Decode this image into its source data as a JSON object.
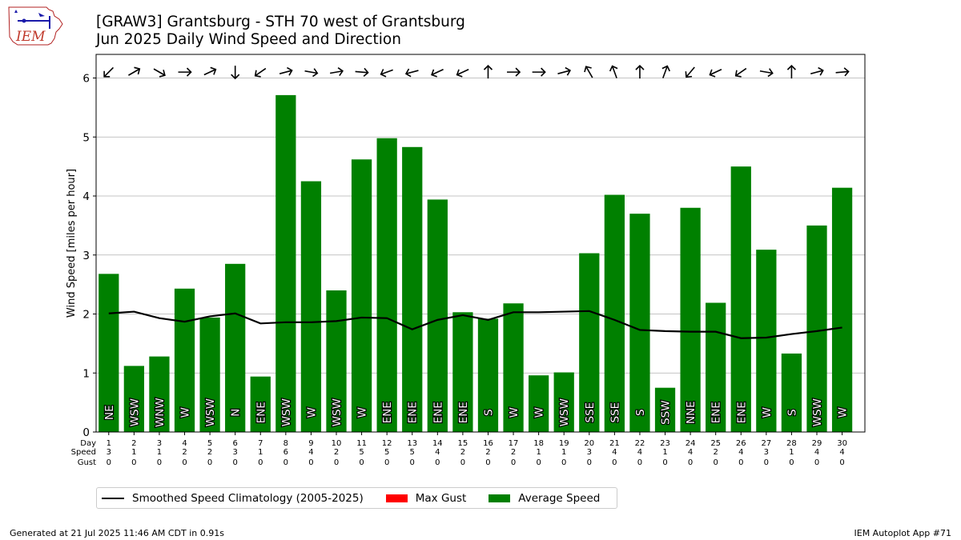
{
  "header": {
    "logo_text": "IEM",
    "title_line1": "[GRAW3] Grantsburg - STH 70 west of Grantsburg",
    "title_line2": "Jun 2025 Daily Wind Speed and Direction"
  },
  "legend": {
    "climatology": "Smoothed Speed Climatology (2005-2025)",
    "max_gust": "Max Gust",
    "average_speed": "Average Speed"
  },
  "footer": {
    "generated": "Generated at 21 Jul 2025 11:46 AM CDT in 0.91s",
    "app": "IEM Autoplot App #71"
  },
  "colors": {
    "bar": "#008000",
    "gust": "#ff0000",
    "climatology": "#000000",
    "grid": "#b0b0b0"
  },
  "chart_data": {
    "type": "bar",
    "ylabel": "Wind Speed [miles per hour]",
    "ylim": [
      0,
      6.4
    ],
    "yticks": [
      0,
      1,
      2,
      3,
      4,
      5,
      6
    ],
    "grid": "horizontal",
    "legend_position": "bottom",
    "row_labels": [
      "Day",
      "Speed",
      "Gust"
    ],
    "days": [
      1,
      2,
      3,
      4,
      5,
      6,
      7,
      8,
      9,
      10,
      11,
      12,
      13,
      14,
      15,
      16,
      17,
      18,
      19,
      20,
      21,
      22,
      23,
      24,
      25,
      26,
      27,
      28,
      29,
      30
    ],
    "speed_row": [
      3,
      1,
      1,
      2,
      2,
      3,
      1,
      6,
      4,
      2,
      5,
      5,
      5,
      4,
      2,
      2,
      2,
      1,
      1,
      3,
      4,
      4,
      1,
      4,
      2,
      4,
      3,
      1,
      4,
      4
    ],
    "gust_row": [
      0,
      0,
      0,
      0,
      0,
      0,
      0,
      0,
      0,
      0,
      0,
      0,
      0,
      0,
      0,
      0,
      0,
      0,
      0,
      0,
      0,
      0,
      0,
      0,
      0,
      0,
      0,
      0,
      0,
      0
    ],
    "series": [
      {
        "name": "Average Speed",
        "values": [
          2.68,
          1.12,
          1.28,
          2.43,
          1.94,
          2.85,
          0.94,
          5.71,
          4.25,
          2.4,
          4.62,
          4.98,
          4.83,
          3.94,
          2.03,
          1.92,
          2.18,
          0.96,
          1.01,
          3.03,
          4.02,
          3.7,
          0.75,
          3.8,
          2.19,
          4.5,
          3.09,
          1.33,
          3.5,
          4.14
        ],
        "direction_labels": [
          "NE",
          "WSW",
          "WNW",
          "W",
          "WSW",
          "N",
          "ENE",
          "WSW",
          "W",
          "WSW",
          "W",
          "ENE",
          "ENE",
          "ENE",
          "ENE",
          "S",
          "W",
          "W",
          "WSW",
          "SSE",
          "SSE",
          "S",
          "SSW",
          "NNE",
          "ENE",
          "ENE",
          "W",
          "S",
          "WSW",
          "W"
        ],
        "arrow_directions_deg": [
          225,
          60,
          120,
          90,
          65,
          180,
          235,
          75,
          100,
          80,
          95,
          250,
          255,
          245,
          245,
          0,
          90,
          90,
          75,
          330,
          340,
          0,
          20,
          220,
          245,
          235,
          100,
          0,
          75,
          85
        ]
      },
      {
        "name": "Smoothed Speed Climatology (2005-2025)",
        "values": [
          2.01,
          2.04,
          1.93,
          1.87,
          1.96,
          2.01,
          1.84,
          1.86,
          1.86,
          1.88,
          1.94,
          1.93,
          1.74,
          1.9,
          1.98,
          1.9,
          2.03,
          2.03,
          2.04,
          2.05,
          1.9,
          1.73,
          1.71,
          1.7,
          1.7,
          1.59,
          1.6,
          1.66,
          1.71,
          1.77
        ]
      }
    ]
  }
}
